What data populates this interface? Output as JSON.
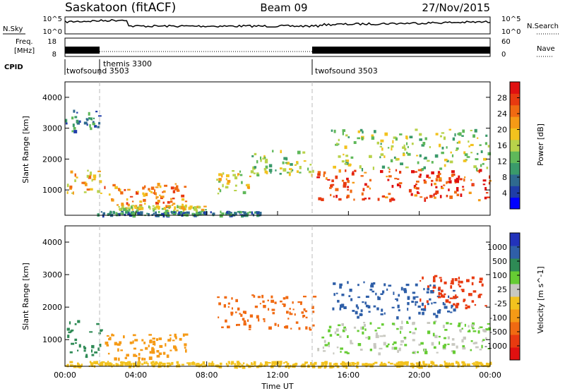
{
  "header": {
    "station": "Saskatoon (fitACF)",
    "beam": "Beam 09",
    "date": "27/Nov/2015"
  },
  "noise_panel": {
    "left_label": "N.Sky",
    "right_label": "N.Search",
    "left_ticks": [
      "10^5",
      "10^0"
    ],
    "right_ticks": [
      "10^5",
      "10^0"
    ]
  },
  "freq_panel": {
    "left_label_line1": "Freq.",
    "left_label_line2": "[MHz]",
    "right_label": "Nave",
    "left_ticks": [
      "18",
      "8"
    ],
    "right_ticks": [
      "60",
      "0"
    ]
  },
  "cpid_panel": {
    "label": "CPID",
    "segments": [
      {
        "name": "twofsound 3503",
        "start_hour": 0
      },
      {
        "name": "themis 3300",
        "start_hour": 2
      },
      {
        "name": "twofsound 3503",
        "start_hour": 14
      }
    ]
  },
  "time_axis": {
    "label": "Time UT",
    "ticks": [
      "00:00",
      "04:00",
      "08:00",
      "12:00",
      "16:00",
      "20:00",
      "00:00"
    ]
  },
  "colors": {
    "power_scale": [
      "#0000ff",
      "#1f3da8",
      "#2f6a8f",
      "#3a9a6a",
      "#5fb85a",
      "#b8d24a",
      "#f2c21e",
      "#f59a16",
      "#f06a12",
      "#e83a10",
      "#e01010"
    ],
    "velocity_scale": [
      "#2233bb",
      "#2f5fa8",
      "#2e8a55",
      "#66cc33",
      "#c8c8c0",
      "#f2c21e",
      "#f59a16",
      "#f06a12",
      "#e83a10",
      "#e01010"
    ]
  },
  "chart_data": [
    {
      "type": "heatmap",
      "panel": "power",
      "xlabel": "Time UT",
      "ylabel": "Slant Range [km]",
      "xlim": [
        0,
        24
      ],
      "ylim": [
        180,
        4500
      ],
      "yticks": [
        "1000",
        "2000",
        "3000",
        "4000"
      ],
      "colorbar": {
        "label": "Power [dB]",
        "ticks": [
          "28",
          "24",
          "20",
          "16",
          "12",
          "8",
          "4"
        ],
        "range": [
          0,
          30
        ]
      },
      "regions": [
        {
          "t": [
            0.1,
            2.0
          ],
          "r": [
            850,
            1700
          ],
          "value": 18
        },
        {
          "t": [
            2.2,
            6.8
          ],
          "r": [
            500,
            1250
          ],
          "value": 22
        },
        {
          "t": [
            3.0,
            8.0
          ],
          "r": [
            350,
            520
          ],
          "value": 16
        },
        {
          "t": [
            1.8,
            11.0
          ],
          "r": [
            200,
            330
          ],
          "value": 8
        },
        {
          "t": [
            8.5,
            10.5
          ],
          "r": [
            900,
            1700
          ],
          "value": 16
        },
        {
          "t": [
            10.5,
            14.0
          ],
          "r": [
            1500,
            2300
          ],
          "value": 14
        },
        {
          "t": [
            14.2,
            24.0
          ],
          "r": [
            700,
            1700
          ],
          "value": 26
        },
        {
          "t": [
            15.0,
            24.0
          ],
          "r": [
            1700,
            3000
          ],
          "value": 14
        },
        {
          "t": [
            0.0,
            2.0
          ],
          "r": [
            2900,
            3600
          ],
          "value": 8
        }
      ]
    },
    {
      "type": "heatmap",
      "panel": "velocity",
      "xlabel": "Time UT",
      "ylabel": "Slant Range [km]",
      "xlim": [
        0,
        24
      ],
      "ylim": [
        180,
        4500
      ],
      "yticks": [
        "1000",
        "2000",
        "3000",
        "4000"
      ],
      "colorbar": {
        "label": "Velocity [m s^-1]",
        "ticks": [
          "1000",
          "500",
          "100",
          "25",
          "-25",
          "-100",
          "-500",
          "-1000"
        ]
      },
      "regions": [
        {
          "t": [
            0.1,
            2.0
          ],
          "r": [
            500,
            1700
          ],
          "value": 50
        },
        {
          "t": [
            2.2,
            6.8
          ],
          "r": [
            400,
            1200
          ],
          "value": -150
        },
        {
          "t": [
            8.5,
            14.0
          ],
          "r": [
            1300,
            2400
          ],
          "value": -400
        },
        {
          "t": [
            14.2,
            24.0
          ],
          "r": [
            600,
            1600
          ],
          "value": 0
        },
        {
          "t": [
            15.0,
            22.0
          ],
          "r": [
            1700,
            2800
          ],
          "value": 200
        },
        {
          "t": [
            20.0,
            24.0
          ],
          "r": [
            2000,
            3000
          ],
          "value": -600
        },
        {
          "t": [
            0.0,
            24.0
          ],
          "r": [
            200,
            350
          ],
          "value": -50
        }
      ]
    }
  ]
}
